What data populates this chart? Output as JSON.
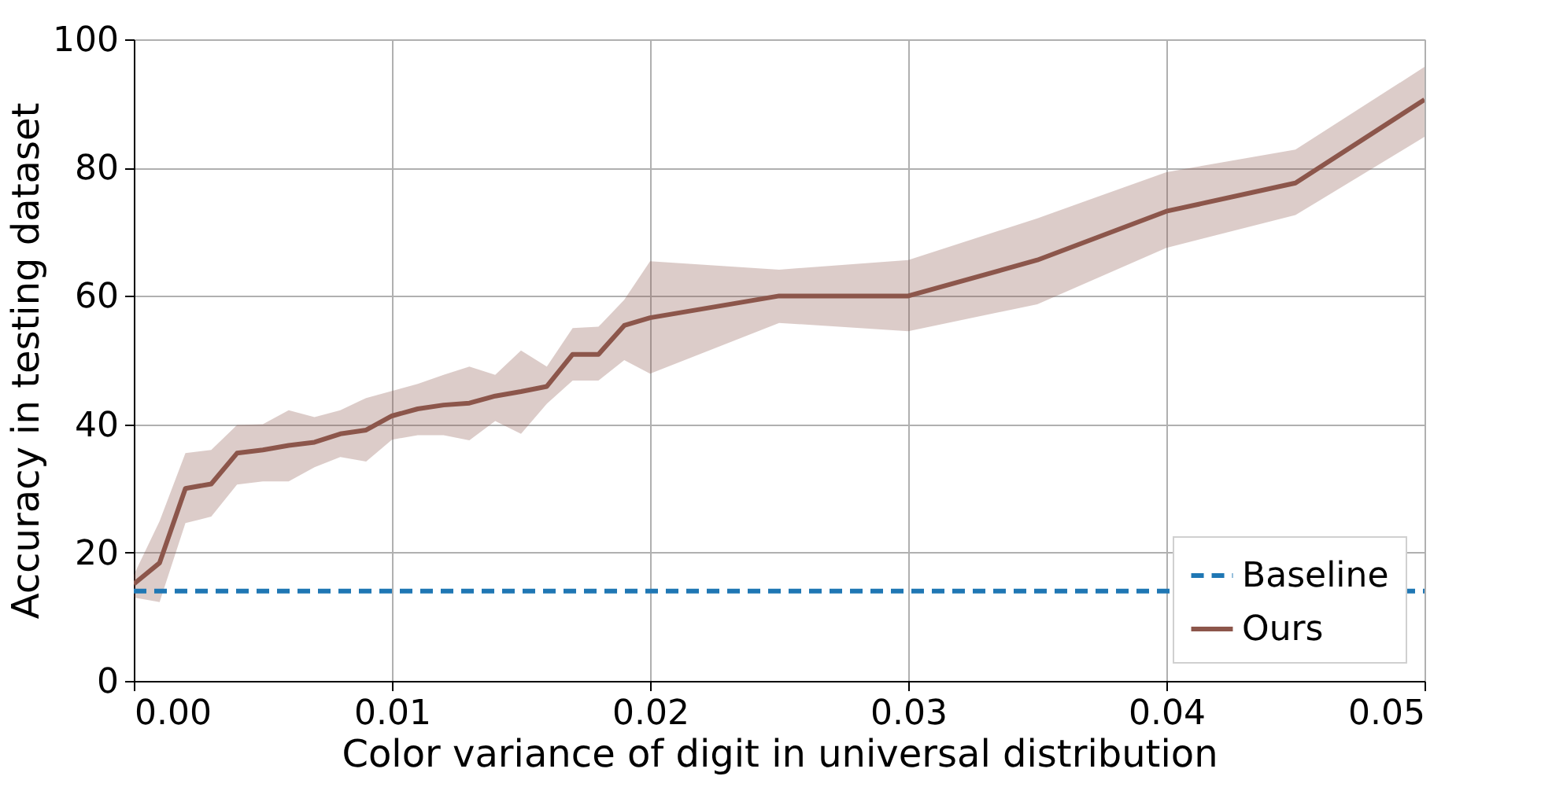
{
  "chart_data": {
    "type": "line",
    "xlabel": "Color variance of digit in universal distribution",
    "ylabel": "Accuracy in testing dataset",
    "xlim": [
      0,
      0.05
    ],
    "xticks": [
      {
        "value": 0,
        "label": "0.00"
      },
      {
        "value": 0.01,
        "label": "0.01"
      },
      {
        "value": 0.02,
        "label": "0.02"
      },
      {
        "value": 0.03,
        "label": "0.03"
      },
      {
        "value": 0.04,
        "label": "0.04"
      },
      {
        "value": 0.05,
        "label": "0.05"
      }
    ],
    "ylim": [
      0,
      100
    ],
    "yticks": [
      0,
      20,
      40,
      60,
      80,
      100
    ],
    "grid": true,
    "legend": "bottom right",
    "series": [
      {
        "name": "Baseline",
        "color": "#1f77b4",
        "line_style": "dashed",
        "x": [
          0,
          0.05
        ],
        "values": [
          14.0,
          14.0
        ]
      },
      {
        "name": "Ours",
        "color": "#8c564b",
        "line_style": "solid",
        "x": [
          0,
          0.001,
          0.002,
          0.003,
          0.004,
          0.005,
          0.006,
          0.007,
          0.008,
          0.009,
          0.01,
          0.011,
          0.012,
          0.013,
          0.014,
          0.015,
          0.016,
          0.017,
          0.018,
          0.019,
          0.02,
          0.025,
          0.03,
          0.035,
          0.04,
          0.045,
          0.05
        ],
        "values": [
          15.1,
          18.4,
          30.0,
          30.7,
          35.5,
          36.0,
          36.7,
          37.2,
          38.5,
          39.1,
          41.3,
          42.4,
          43.0,
          43.3,
          44.4,
          45.1,
          45.9,
          50.9,
          50.9,
          55.4,
          56.6,
          60.0,
          60.0,
          65.6,
          73.2,
          77.6,
          90.6
        ],
        "lower": [
          13.0,
          12.3,
          24.6,
          25.6,
          30.6,
          31.1,
          31.1,
          33.3,
          34.9,
          34.2,
          37.6,
          38.3,
          38.3,
          37.5,
          40.5,
          38.5,
          43.2,
          46.8,
          46.8,
          50.0,
          47.9,
          55.8,
          54.5,
          58.7,
          67.5,
          72.6,
          84.8
        ],
        "upper": [
          16.5,
          24.9,
          35.5,
          36.0,
          39.9,
          40.0,
          42.2,
          41.1,
          42.2,
          44.1,
          45.2,
          46.3,
          47.7,
          49.0,
          47.7,
          51.5,
          49.0,
          55.0,
          55.2,
          59.4,
          65.4,
          64.1,
          65.6,
          72.1,
          79.3,
          82.8,
          95.7
        ]
      }
    ]
  }
}
